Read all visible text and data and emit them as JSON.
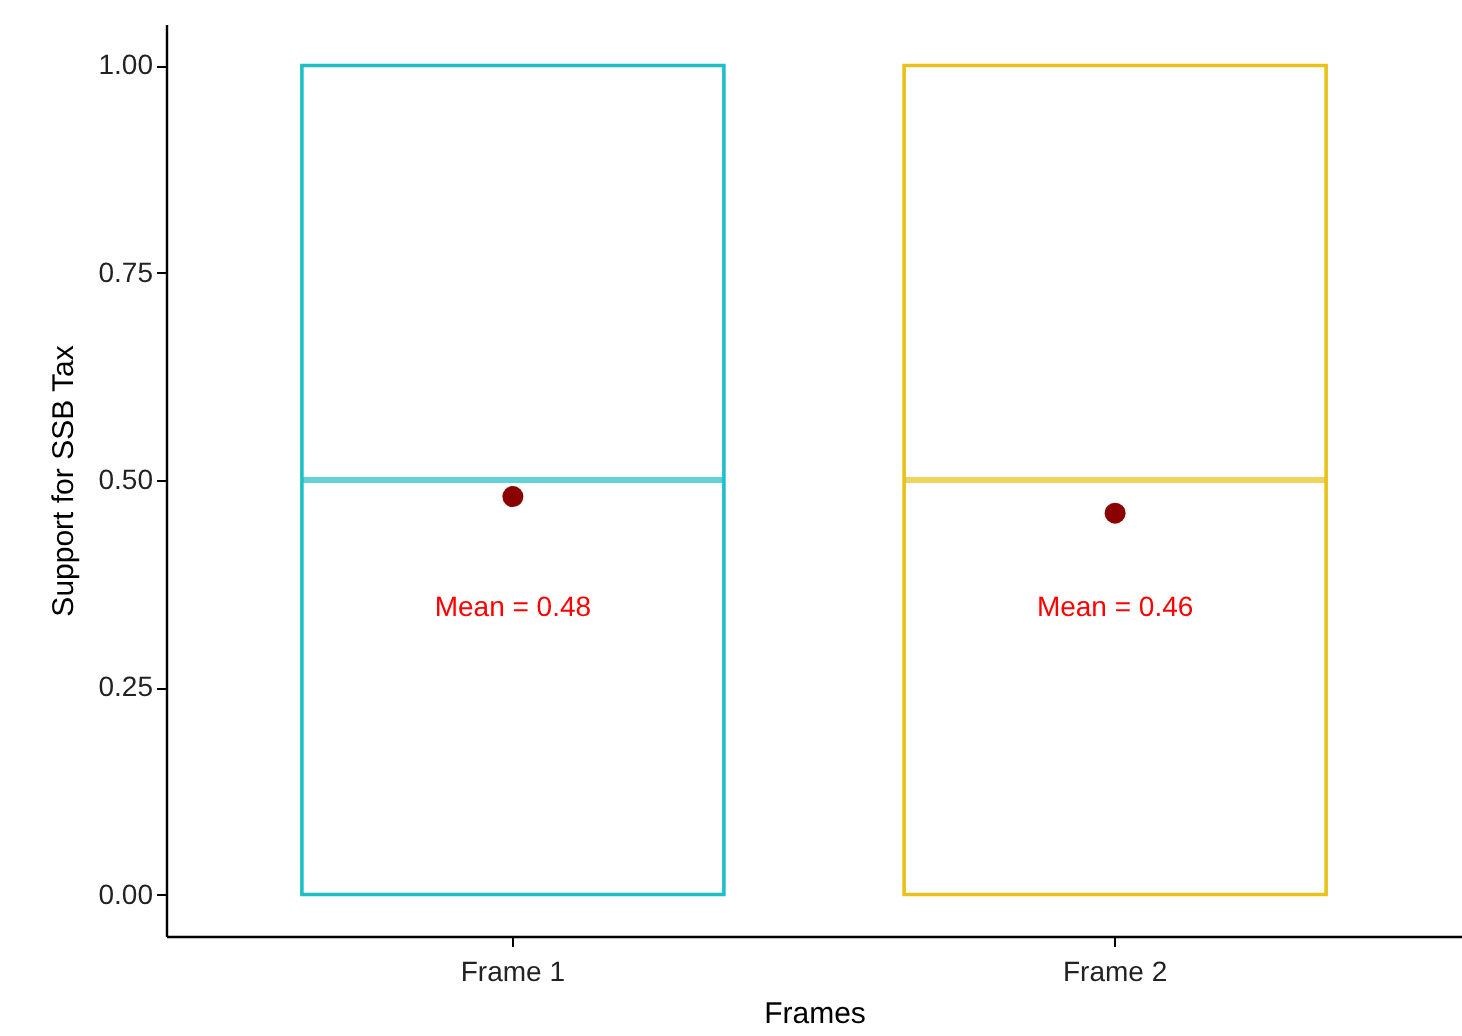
{
  "chart_data": {
    "type": "box",
    "xlabel": "Frames",
    "ylabel": "Support for SSB Tax",
    "categories": [
      "Frame 1",
      "Frame 2"
    ],
    "series": [
      {
        "boxes": [
          {
            "low": 0,
            "q1": 0,
            "median": 0.5,
            "q3": 1,
            "high": 1
          },
          {
            "low": 0,
            "q1": 0,
            "median": 0.5,
            "q3": 1,
            "high": 1
          }
        ],
        "colors": [
          "#1fbfc7",
          "#e8c21a"
        ]
      },
      {
        "type": "scatter",
        "x": [
          "Frame 1",
          "Frame 2"
        ],
        "values": [
          0.48,
          0.46
        ],
        "color": "#8b0000"
      }
    ],
    "ylim": [
      -0.05,
      1.05
    ],
    "yticks": [
      {
        "value": 0,
        "label": "0.00"
      },
      {
        "value": 0.25,
        "label": "0.25"
      },
      {
        "value": 0.5,
        "label": "0.50"
      },
      {
        "value": 0.75,
        "label": "0.75"
      },
      {
        "value": 1,
        "label": "1.00"
      }
    ],
    "annotations": [
      "Mean = 0.48",
      "Mean = 0.46"
    ],
    "grid": false
  }
}
